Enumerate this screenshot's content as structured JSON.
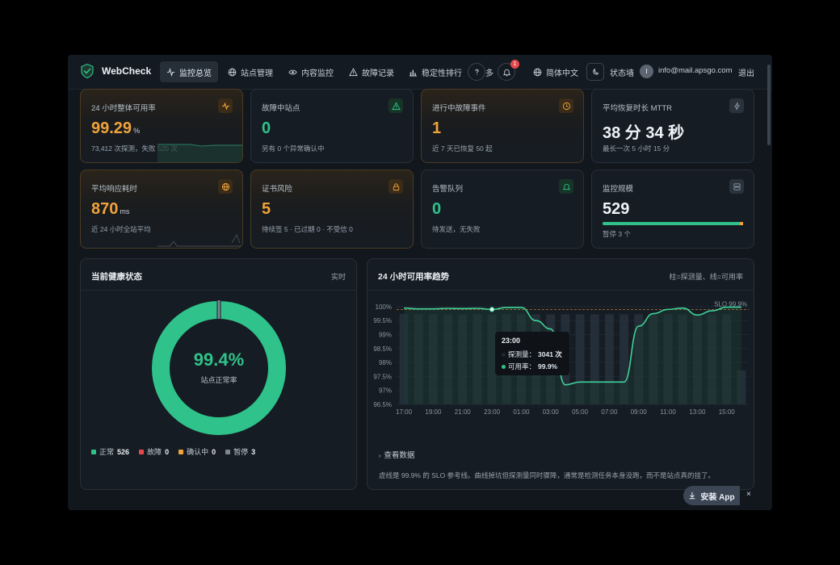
{
  "nav": {
    "brand": "WebCheck",
    "items": [
      {
        "label": "监控总览",
        "icon": "activity-icon",
        "active": true
      },
      {
        "label": "站点管理",
        "icon": "globe-icon",
        "active": false
      },
      {
        "label": "内容监控",
        "icon": "eye-icon",
        "active": false
      },
      {
        "label": "故障记录",
        "icon": "warning-icon",
        "active": false
      },
      {
        "label": "稳定性排行",
        "icon": "bar-chart-icon",
        "active": false
      }
    ],
    "more_label": "多",
    "notification_count": "1",
    "language": "简体中文",
    "status_wall": "状态墙",
    "avatar_initial": "I",
    "email": "info@mail.apsgo.com",
    "logout": "退出"
  },
  "cards": [
    {
      "label": "24 小时整体可用率",
      "value": "99.29",
      "unit": "%",
      "sub": "73,412 次探测，失败 520 次",
      "icon": "activity-icon",
      "tone": "orange"
    },
    {
      "label": "故障中站点",
      "value": "0",
      "unit": "",
      "sub": "另有 0 个异常确认中",
      "icon": "warning-icon",
      "tone": "green"
    },
    {
      "label": "进行中故障事件",
      "value": "1",
      "unit": "",
      "sub": "近 7 天已恢复 50 起",
      "icon": "clock-icon",
      "tone": "orange"
    },
    {
      "label": "平均恢复时长 MTTR",
      "value": "38 分 34 秒",
      "unit": "",
      "sub": "最长一次 5 小时 15 分",
      "icon": "bolt-icon",
      "tone": "gray"
    },
    {
      "label": "平均响应耗时",
      "value": "870",
      "unit": "ms",
      "sub": "近 24 小时全站平均",
      "icon": "globe-icon",
      "tone": "orange"
    },
    {
      "label": "证书风险",
      "value": "5",
      "unit": "",
      "sub": "待续签 5 · 已过期 0 · 不受信 0",
      "icon": "lock-icon",
      "tone": "orange"
    },
    {
      "label": "告警队列",
      "value": "0",
      "unit": "",
      "sub": "待发送，无失败",
      "icon": "bell-icon",
      "tone": "green"
    },
    {
      "label": "监控规模",
      "value": "529",
      "unit": "",
      "sub": "暂停 3 个",
      "icon": "server-icon",
      "tone": "gray",
      "progress": 0.994
    }
  ],
  "health": {
    "title": "当前健康状态",
    "right": "实时",
    "percent": "99.4%",
    "caption": "站点正常率",
    "legend": [
      {
        "label": "正常",
        "count": "526",
        "color": "#2fc28a"
      },
      {
        "label": "故障",
        "count": "0",
        "color": "#e5484d"
      },
      {
        "label": "确认中",
        "count": "0",
        "color": "#f0a33a"
      },
      {
        "label": "暂停",
        "count": "3",
        "color": "#7d8794"
      }
    ]
  },
  "trend": {
    "title": "24 小时可用率趋势",
    "right": "柱=探测量、线=可用率",
    "slo_label": "SLO 99.9%",
    "view_data": "查看数据",
    "footnote": "虚线是 99.9% 的 SLO 参考线。曲线掉坑但探测量同时骤降，通常是检测任务本身没跑，而不是站点真的挂了。",
    "tooltip": {
      "time": "23:00",
      "probe_label": "探测量：",
      "probe_value": "3041 次",
      "avail_label": "可用率：",
      "avail_value": "99.9%"
    }
  },
  "chart_data": {
    "type": "line",
    "x": [
      "17:00",
      "18:00",
      "19:00",
      "20:00",
      "21:00",
      "22:00",
      "23:00",
      "00:00",
      "01:00",
      "02:00",
      "03:00",
      "04:00",
      "05:00",
      "06:00",
      "07:00",
      "08:00",
      "09:00",
      "10:00",
      "11:00",
      "12:00",
      "13:00",
      "14:00",
      "15:00",
      "16:00"
    ],
    "x_tick_labels": [
      "17:00",
      "19:00",
      "21:00",
      "23:00",
      "01:00",
      "03:00",
      "05:00",
      "07:00",
      "09:00",
      "11:00",
      "13:00",
      "15:00"
    ],
    "y_ticks": [
      "100%",
      "99.5%",
      "99%",
      "98.5%",
      "98%",
      "97.5%",
      "97%",
      "96.5%"
    ],
    "ylim": [
      96.5,
      100.2
    ],
    "slo": 99.9,
    "availability": [
      99.95,
      99.92,
      99.92,
      99.94,
      99.93,
      99.94,
      99.9,
      99.97,
      99.97,
      99.5,
      99.2,
      97.2,
      97.3,
      97.3,
      97.3,
      97.3,
      99.3,
      99.75,
      99.9,
      99.95,
      99.7,
      99.85,
      99.98,
      99.98
    ],
    "probes": [
      3060,
      3050,
      3055,
      3050,
      3048,
      3052,
      3041,
      3050,
      3050,
      3048,
      3045,
      3050,
      3050,
      3045,
      3050,
      3048,
      3052,
      3050,
      3050,
      3048,
      3050,
      3045,
      3050,
      1150
    ],
    "grid": true
  },
  "install": {
    "label": "安装 App",
    "close": "×"
  }
}
